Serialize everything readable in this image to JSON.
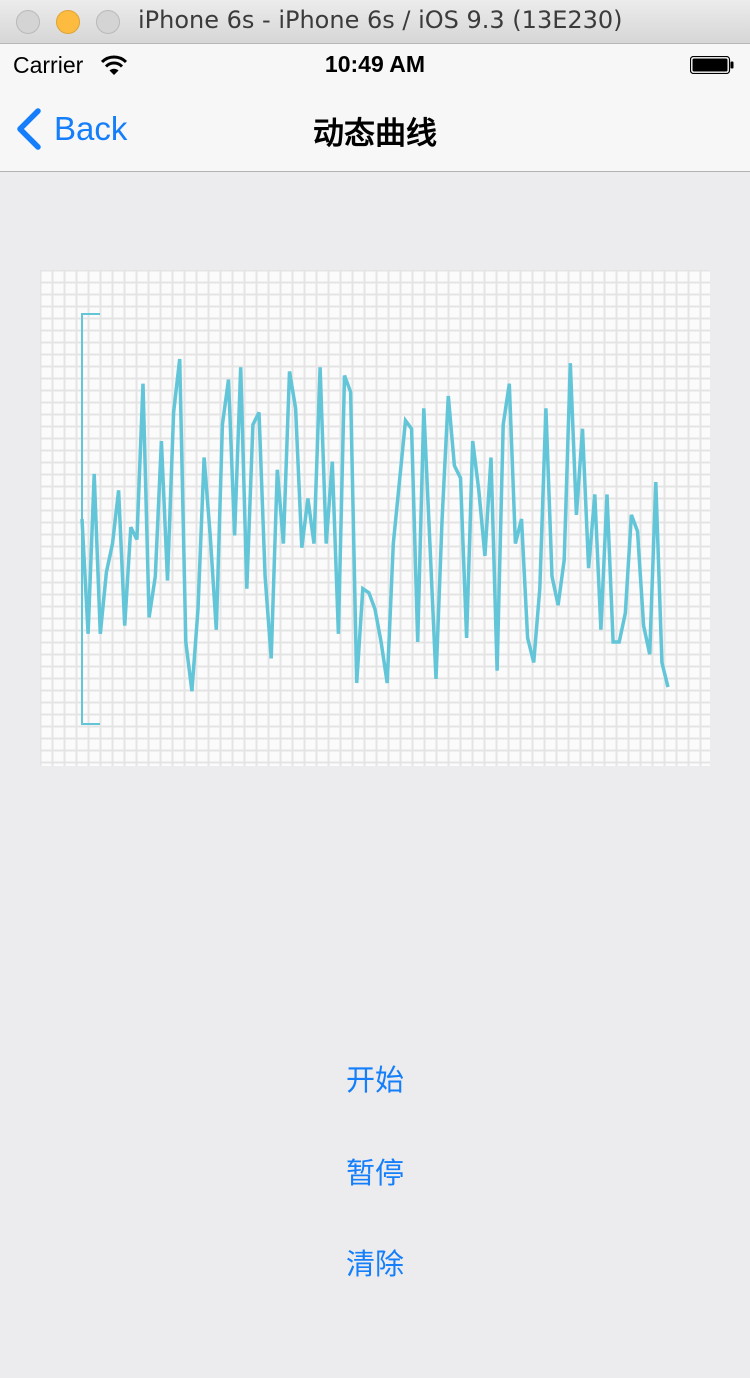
{
  "window": {
    "title": "iPhone 6s - iPhone 6s / iOS 9.3 (13E230)"
  },
  "status_bar": {
    "carrier": "Carrier",
    "time": "10:49 AM",
    "icons": [
      "wifi-icon",
      "battery-icon"
    ]
  },
  "nav": {
    "back_label": "Back",
    "title": "动态曲线"
  },
  "chart_data": {
    "type": "line",
    "title": "",
    "xlabel": "",
    "ylabel": "",
    "grid": true,
    "legend": "none",
    "line_color": "#62c5d8",
    "grid_color": "#e4e4e4",
    "ylim": [
      0,
      100
    ],
    "series": [
      {
        "name": "",
        "values": [
          50,
          22,
          61,
          22,
          37,
          44,
          57,
          24,
          48,
          45,
          83,
          26,
          36,
          69,
          35,
          76,
          89,
          20,
          8,
          28,
          65,
          46,
          23,
          73,
          84,
          46,
          87,
          33,
          73,
          76,
          36,
          16,
          62,
          44,
          86,
          77,
          43,
          55,
          44,
          87,
          44,
          64,
          22,
          85,
          81,
          10,
          33,
          32,
          28,
          20,
          10,
          44,
          59,
          74,
          72,
          20,
          77,
          44,
          11,
          50,
          80,
          63,
          60,
          21,
          69,
          57,
          41,
          65,
          13,
          73,
          83,
          44,
          50,
          21,
          15,
          33,
          77,
          36,
          29,
          40,
          88,
          51,
          72,
          38,
          56,
          23,
          56,
          20,
          20,
          27,
          51,
          47,
          24,
          17,
          59,
          15,
          9
        ]
      }
    ]
  },
  "actions": {
    "start": "开始",
    "pause": "暂停",
    "clear": "清除"
  }
}
